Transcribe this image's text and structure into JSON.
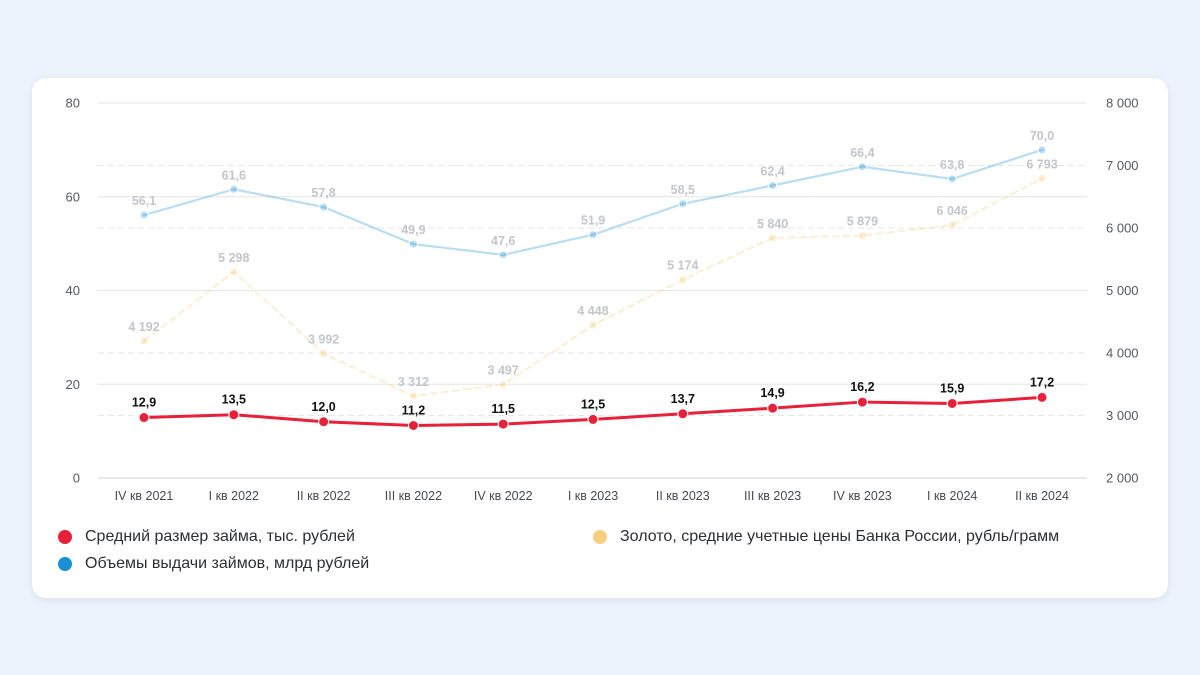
{
  "chart_data": {
    "type": "line",
    "categories": [
      "IV кв 2021",
      "I кв 2022",
      "II кв 2022",
      "III кв 2022",
      "IV кв 2022",
      "I кв 2023",
      "II кв 2023",
      "III кв 2023",
      "IV кв 2023",
      "I кв 2024",
      "II кв 2024"
    ],
    "y_left": {
      "ylim": [
        0,
        80
      ],
      "ticks": [
        "0",
        "20",
        "40",
        "60",
        "80"
      ]
    },
    "y_right": {
      "ylim": [
        2000,
        8000
      ],
      "ticks": [
        "2 000",
        "3 000",
        "4 000",
        "5 000",
        "6 000",
        "7 000",
        "8 000"
      ]
    },
    "grid": true,
    "legend_position": "bottom",
    "series": [
      {
        "name": "Средний размер займа, тыс. рублей",
        "axis": "left",
        "color": "#e8213a",
        "values": [
          12.9,
          13.5,
          12.0,
          11.2,
          11.5,
          12.5,
          13.7,
          14.9,
          16.2,
          15.9,
          17.2
        ],
        "labels": [
          "12,9",
          "13,5",
          "12,0",
          "11,2",
          "11,5",
          "12,5",
          "13,7",
          "14,9",
          "16,2",
          "15,9",
          "17,2"
        ]
      },
      {
        "name": "Объемы выдачи займов, млрд рублей",
        "axis": "left",
        "color": "#1a8fd6",
        "values": [
          56.1,
          61.6,
          57.8,
          49.9,
          47.6,
          51.9,
          58.5,
          62.4,
          66.4,
          63.8,
          70.0
        ],
        "labels": [
          "56,1",
          "61,6",
          "57,8",
          "49,9",
          "47,6",
          "51,9",
          "58,5",
          "62,4",
          "66,4",
          "63,8",
          "70,0"
        ]
      },
      {
        "name": "Золото, средние учетные цены Банка России, рубль/грамм",
        "axis": "right",
        "color": "#f7cf7e",
        "values": [
          4192,
          5298,
          3992,
          3312,
          3497,
          4448,
          5174,
          5840,
          5879,
          6046,
          6793
        ],
        "labels": [
          "4 192",
          "5 298",
          "3 992",
          "3 312",
          "3 497",
          "4 448",
          "5 174",
          "5 840",
          "5 879",
          "6 046",
          "6 793"
        ]
      }
    ]
  }
}
